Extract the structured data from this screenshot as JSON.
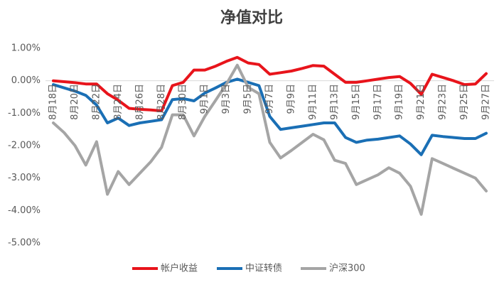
{
  "chart_data": {
    "type": "line",
    "title": "净值对比",
    "categories": [
      "8月18日",
      null,
      "8月20日",
      null,
      "8月22日",
      null,
      "8月24日",
      null,
      "8月26日",
      null,
      "8月28日",
      null,
      "8月30日",
      null,
      "9月1日",
      null,
      "9月3日",
      null,
      "9月5日",
      null,
      "9月7日",
      null,
      "9月9日",
      null,
      "9月11日",
      null,
      "9月13日",
      null,
      "9月15日",
      null,
      "9月17日",
      null,
      "9月19日",
      null,
      "9月21日",
      null,
      "9月23日",
      null,
      "9月25日",
      null,
      "9月27日"
    ],
    "series": [
      {
        "name": "帐户收益",
        "color": "#e8141b",
        "values": [
          0.0,
          -0.03,
          -0.06,
          -0.1,
          -0.1,
          -0.4,
          -0.6,
          -0.85,
          -0.88,
          -0.9,
          -0.93,
          -0.15,
          -0.05,
          0.33,
          0.33,
          0.45,
          0.6,
          0.72,
          0.55,
          0.5,
          0.2,
          0.25,
          0.3,
          0.38,
          0.47,
          0.45,
          0.2,
          -0.05,
          -0.05,
          0.0,
          0.05,
          0.1,
          0.13,
          -0.08,
          -0.42,
          0.2,
          0.1,
          0.0,
          -0.12,
          -0.1,
          0.22
        ]
      },
      {
        "name": "中证转债",
        "color": "#1a6fb5",
        "values": [
          -0.12,
          -0.22,
          -0.32,
          -0.45,
          -0.75,
          -1.3,
          -1.15,
          -1.38,
          -1.3,
          -1.25,
          -1.2,
          -0.58,
          -0.55,
          -0.62,
          -0.38,
          -0.22,
          -0.05,
          0.05,
          -0.05,
          -0.15,
          -1.1,
          -1.5,
          -1.45,
          -1.4,
          -1.35,
          -1.3,
          -1.3,
          -1.75,
          -1.9,
          -1.83,
          -1.8,
          -1.75,
          -1.7,
          -1.95,
          -2.28,
          -1.68,
          -1.72,
          -1.75,
          -1.78,
          -1.78,
          -1.62
        ]
      },
      {
        "name": "沪深300",
        "color": "#a5a5a5",
        "values": [
          -1.3,
          -1.6,
          -2.0,
          -2.6,
          -1.88,
          -3.5,
          -2.8,
          -3.2,
          -2.85,
          -2.5,
          -2.05,
          -1.05,
          -1.05,
          -1.7,
          -1.1,
          -0.6,
          -0.1,
          0.48,
          -0.2,
          -0.4,
          -1.9,
          -2.38,
          -2.15,
          -1.9,
          -1.65,
          -1.82,
          -2.45,
          -2.55,
          -3.2,
          -3.05,
          -2.9,
          -2.68,
          -2.85,
          -3.25,
          -4.12,
          -2.4,
          -2.55,
          -2.7,
          -2.85,
          -3.0,
          -3.4
        ]
      }
    ],
    "ylim": [
      -5,
      1
    ],
    "yticks": [
      {
        "value": 1,
        "label": "1.00%"
      },
      {
        "value": 0,
        "label": "0.00%"
      },
      {
        "value": -1,
        "label": "-1.00%"
      },
      {
        "value": -2,
        "label": "-2.00%"
      },
      {
        "value": -3,
        "label": "-3.00%"
      },
      {
        "value": -4,
        "label": "-4.00%"
      },
      {
        "value": -5,
        "label": "-5.00%"
      }
    ],
    "grid": false,
    "legend": "bottom"
  }
}
